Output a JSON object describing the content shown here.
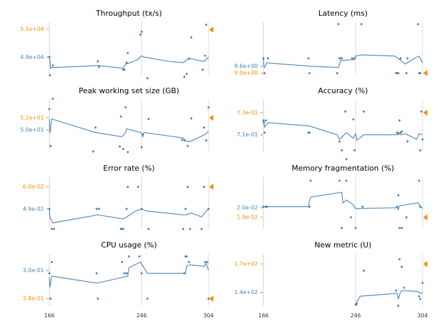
{
  "colors": {
    "line": "#4682b4",
    "points": "#4682b4",
    "marker": "#ff8c00",
    "tick_normal": "#4682b4",
    "tick_highlight": "#ff8c00",
    "axis": "#cccccc",
    "vline": "#dddddd"
  },
  "chart_data": [
    {
      "type": "line",
      "title": "Throughput (tx/s)",
      "xlim": [
        166,
        304
      ],
      "ylim": [
        47700,
        51500
      ],
      "x_ticks": [
        "166",
        "246",
        "304"
      ],
      "y_ticks": [
        {
          "value": 51000,
          "label": "5.1e+04",
          "highlight": true
        },
        {
          "value": 49000,
          "label": "4.9e+04",
          "highlight": false
        }
      ],
      "markers": [
        {
          "x": 304,
          "y": 50950
        }
      ],
      "series": [
        {
          "x": [
            166,
            166.5,
            167,
            168,
            208,
            230,
            232,
            236,
            242,
            246,
            248,
            270,
            282,
            285,
            289,
            293,
            300,
            304
          ],
          "y": [
            49000,
            48800,
            48200,
            48250,
            48400,
            48200,
            48500,
            48600,
            48800,
            49100,
            49000,
            48700,
            48600,
            48800,
            48900,
            48800,
            48700,
            49000
          ]
        }
      ],
      "points": {
        "x": [
          166,
          166.5,
          169,
          208,
          209,
          230,
          231,
          233,
          234,
          245,
          246,
          251,
          283,
          285,
          287,
          289,
          299,
          301,
          302
        ],
        "y": [
          49000,
          47700,
          48400,
          48700,
          48300,
          48100,
          48100,
          48600,
          49300,
          50600,
          50800,
          47500,
          47600,
          47800,
          48900,
          50400,
          48100,
          49100,
          51300
        ]
      }
    },
    {
      "type": "line",
      "title": "Latency (ms)",
      "xlim": [
        166,
        304
      ],
      "ylim": [
        8.8,
        13.5
      ],
      "x_ticks": [
        "166",
        "246",
        "304"
      ],
      "y_ticks": [
        {
          "value": 9.6,
          "label": "9.6e+00",
          "highlight": false
        },
        {
          "value": 9.0,
          "label": "9.0e+00",
          "highlight": true
        }
      ],
      "markers": [
        {
          "x": 304,
          "y": 9.0
        }
      ],
      "series": [
        {
          "x": [
            166,
            166.5,
            167,
            169,
            207,
            231,
            233,
            245,
            246,
            252,
            280,
            284,
            289,
            297,
            301,
            304
          ],
          "y": [
            10.4,
            9.6,
            9.5,
            9.9,
            9.6,
            9.5,
            10.1,
            10.2,
            10.5,
            10.6,
            10.5,
            10.2,
            9.8,
            10.3,
            10.5,
            9.9
          ]
        }
      ],
      "points": {
        "x": [
          166,
          167,
          170,
          205,
          206,
          230,
          231,
          232,
          233,
          234,
          243,
          245,
          251,
          281,
          282,
          283,
          285,
          290,
          291,
          300,
          301,
          302
        ],
        "y": [
          10.3,
          9.0,
          10.3,
          10.3,
          9.0,
          9.0,
          13.3,
          10.3,
          10.3,
          10.3,
          10.3,
          10.3,
          13.3,
          9.0,
          9.0,
          9.0,
          10.3,
          9.0,
          10.3,
          13.3,
          9.0,
          9.0
        ]
      }
    },
    {
      "type": "line",
      "title": "Peak working set size (GB)",
      "xlim": [
        166,
        304
      ],
      "ylim": [
        46.5,
        55
      ],
      "x_ticks": [
        "166",
        "246",
        "304"
      ],
      "y_ticks": [
        {
          "value": 52,
          "label": "5.2e+01",
          "highlight": true
        },
        {
          "value": 50,
          "label": "5.0e+01",
          "highlight": false
        }
      ],
      "markers": [
        {
          "x": 304,
          "y": 52
        }
      ],
      "series": [
        {
          "x": [
            166,
            166.5,
            168,
            206,
            229,
            232,
            233,
            245,
            246,
            247,
            248,
            282,
            285,
            289,
            297,
            301,
            304
          ],
          "y": [
            51.8,
            49.5,
            51.8,
            49.6,
            48.9,
            49.6,
            50.2,
            49.6,
            49.5,
            48.9,
            49.6,
            48.7,
            48.1,
            48.2,
            48.9,
            49.3,
            49.8
          ]
        }
      ],
      "points": {
        "x": [
          166,
          167,
          169,
          204,
          206,
          227,
          228,
          230,
          232,
          234,
          246,
          247,
          252,
          281,
          283,
          286,
          289,
          300,
          302,
          304
        ],
        "y": [
          53.4,
          47.4,
          55.1,
          46.5,
          50.4,
          47.3,
          52.2,
          46.9,
          53.7,
          46.4,
          47.2,
          49.3,
          51.8,
          48.4,
          48.3,
          47.4,
          51.9,
          50.4,
          48.3,
          53.7
        ]
      }
    },
    {
      "type": "line",
      "title": "Accuracy (%)",
      "xlim": [
        166,
        304
      ],
      "ylim": [
        69.5,
        74.2
      ],
      "x_ticks": [
        "166",
        "246",
        "304"
      ],
      "y_ticks": [
        {
          "value": 73,
          "label": "7.3e-01",
          "highlight": true
        },
        {
          "value": 71,
          "label": "7.1e-01",
          "highlight": false
        }
      ],
      "markers": [
        {
          "x": 304,
          "y": 73
        }
      ],
      "series": [
        {
          "x": [
            166,
            167,
            170,
            206,
            230,
            232,
            238,
            244,
            246,
            247,
            253,
            282,
            283,
            285,
            289,
            299,
            301,
            304
          ],
          "y": [
            72.3,
            71.7,
            72.1,
            71.8,
            71.0,
            70.6,
            71.2,
            70.7,
            71.1,
            70.5,
            71.0,
            71.0,
            71.2,
            71.0,
            71.1,
            70.6,
            71.1,
            71.0
          ]
        }
      ],
      "points": {
        "x": [
          166,
          166.5,
          167,
          168,
          205,
          206,
          232,
          234,
          237,
          238,
          244,
          245,
          253,
          282,
          283,
          284,
          285,
          286,
          291,
          302,
          303,
          304
        ],
        "y": [
          72.3,
          72.1,
          71.2,
          72.3,
          71.2,
          71.2,
          70.4,
          69.6,
          73.1,
          68.8,
          72.4,
          69.6,
          73.1,
          71.2,
          71.1,
          72.3,
          71.2,
          71.3,
          70.4,
          69.6,
          73.1,
          70.6
        ]
      }
    },
    {
      "type": "line",
      "title": "Error rate (%)",
      "xlim": [
        166,
        304
      ],
      "ylim": [
        3.9,
        6.5
      ],
      "x_ticks": [
        "166",
        "246",
        "304"
      ],
      "y_ticks": [
        {
          "value": 6.0,
          "label": "6.0e-02",
          "highlight": true
        },
        {
          "value": 4.9,
          "label": "4.9e-02",
          "highlight": false
        }
      ],
      "markers": [
        {
          "x": 304,
          "y": 6.0
        }
      ],
      "series": [
        {
          "x": [
            166,
            166.5,
            169,
            208,
            230,
            233,
            241,
            246,
            250,
            282,
            285,
            289,
            298,
            302,
            304
          ],
          "y": [
            4.9,
            4.5,
            4.2,
            4.6,
            4.4,
            4.5,
            4.8,
            4.9,
            4.8,
            4.6,
            4.6,
            4.7,
            4.5,
            4.8,
            4.9
          ]
        }
      ],
      "points": {
        "x": [
          166,
          168,
          170,
          207,
          209,
          228,
          229,
          230,
          233,
          234,
          243,
          246,
          252,
          282,
          284,
          286,
          288,
          298,
          300,
          304
        ],
        "y": [
          4.9,
          3.9,
          3.9,
          4.9,
          4.9,
          3.9,
          3.9,
          3.9,
          4.9,
          6.0,
          6.0,
          4.9,
          3.9,
          3.9,
          4.9,
          6.0,
          3.9,
          3.9,
          6.0,
          4.9
        ]
      }
    },
    {
      "type": "line",
      "title": "Memory fragmentation (%)",
      "xlim": [
        166,
        304
      ],
      "ylim": [
        1.78,
        2.32
      ],
      "x_ticks": [
        "166",
        "246",
        "304"
      ],
      "y_ticks": [
        {
          "value": 2.0,
          "label": "2.0e-02",
          "highlight": false
        },
        {
          "value": 1.9,
          "label": "1.9e-02",
          "highlight": true
        }
      ],
      "markers": [
        {
          "x": 304,
          "y": 1.9
        }
      ],
      "series": [
        {
          "x": [
            166,
            205,
            206,
            207,
            234,
            235,
            238,
            244,
            246,
            282,
            283,
            284,
            300,
            302,
            304
          ],
          "y": [
            2.01,
            2.01,
            2.07,
            2.11,
            2.16,
            2.05,
            2.08,
            2.03,
            1.99,
            2.0,
            1.98,
            2.02,
            2.05,
            2.02,
            1.99
          ]
        }
      ],
      "points": {
        "x": [
          166,
          168,
          169,
          206,
          207,
          232,
          234,
          238,
          242,
          246,
          252,
          282,
          283,
          284,
          286,
          290,
          301,
          302
        ],
        "y": [
          2.01,
          2.01,
          2.01,
          2.01,
          2.28,
          2.28,
          1.79,
          2.28,
          1.9,
          1.79,
          2.01,
          2.01,
          2.13,
          1.79,
          1.79,
          1.9,
          2.28,
          2.01
        ]
      }
    },
    {
      "type": "line",
      "title": "CPU usage (%)",
      "xlim": [
        166,
        304
      ],
      "ylim": [
        27.5,
        31.2
      ],
      "x_ticks": [
        "166",
        "246",
        "304"
      ],
      "y_ticks": [
        {
          "value": 30.0,
          "label": "3.0e-01",
          "highlight": false
        },
        {
          "value": 28.0,
          "label": "2.8e-01",
          "highlight": true
        }
      ],
      "markers": [
        {
          "x": 304,
          "y": 28.0
        }
      ],
      "series": [
        {
          "x": [
            166,
            166.5,
            168,
            207,
            229,
            234,
            235,
            245,
            251,
            284,
            285,
            288,
            300,
            302,
            304
          ],
          "y": [
            29.5,
            28.8,
            29.6,
            29.1,
            29.5,
            29.6,
            30.2,
            30.6,
            29.8,
            29.8,
            30.3,
            30.4,
            30.3,
            30.5,
            30.0
          ]
        }
      ],
      "points": {
        "x": [
          166,
          167,
          168,
          207,
          208,
          229,
          231,
          233,
          235,
          244,
          246,
          251,
          283,
          284,
          285,
          287,
          301,
          303,
          304
        ],
        "y": [
          29.8,
          28.0,
          30.6,
          29.8,
          28.0,
          30.6,
          29.8,
          29.8,
          31.0,
          31.0,
          29.8,
          28.0,
          29.8,
          31.0,
          31.0,
          30.6,
          30.6,
          30.6,
          28.0
        ]
      }
    },
    {
      "type": "line",
      "title": "New metric (U)",
      "xlim": [
        166,
        304
      ],
      "ylim": [
        126,
        181
      ],
      "x_ticks": [
        "166",
        "246",
        "304"
      ],
      "y_ticks": [
        {
          "value": 170,
          "label": "1.7e+02",
          "highlight": true
        },
        {
          "value": 140,
          "label": "1.4e+02",
          "highlight": false
        }
      ],
      "markers": [
        {
          "x": 304,
          "y": 170
        }
      ],
      "series": [
        {
          "x": [
            246,
            246.5,
            250,
            282,
            283,
            285,
            288,
            300,
            302,
            304
          ],
          "y": [
            127,
            129,
            136,
            139,
            133,
            141,
            142,
            141,
            139,
            140
          ]
        }
      ],
      "points": {
        "x": [
          246,
          247,
          253,
          281,
          283,
          284,
          286,
          288,
          301,
          302,
          304
        ],
        "y": [
          127,
          128,
          163,
          142,
          126,
          175,
          167,
          145,
          136,
          133,
          150
        ]
      }
    }
  ]
}
